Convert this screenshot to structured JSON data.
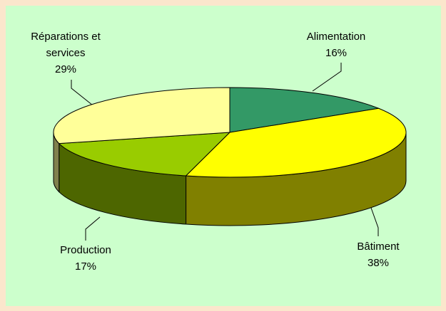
{
  "chart_data": {
    "type": "pie3d",
    "categories": [
      "Alimentation",
      "Bâtiment",
      "Production",
      "Réparations et services"
    ],
    "values": [
      16,
      38,
      17,
      29
    ],
    "value_labels": [
      "16%",
      "38%",
      "17%",
      "29%"
    ],
    "colors": [
      "#339966",
      "#ffff00",
      "#99cc00",
      "#ffff99"
    ],
    "side_colors": [
      "#1f5c3d",
      "#808000",
      "#4d6600",
      "#80804d"
    ]
  }
}
